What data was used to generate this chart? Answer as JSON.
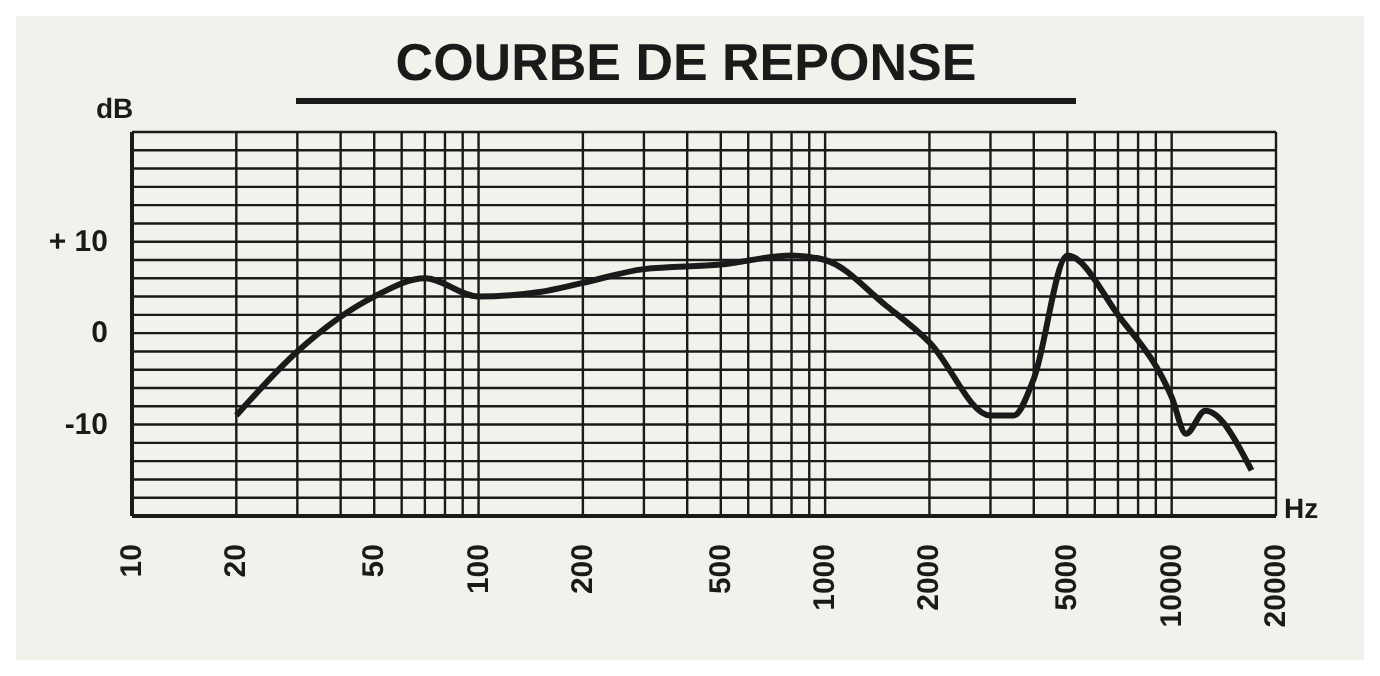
{
  "chart_data": {
    "type": "line",
    "title": "COURBE DE REPONSE",
    "xlabel": "Hz",
    "ylabel": "dB",
    "log": "x",
    "grid": true,
    "marker": "none",
    "line_style": "solid",
    "x": [
      20,
      30,
      50,
      70,
      100,
      150,
      200,
      300,
      500,
      800,
      1000,
      1500,
      2000,
      3000,
      3500,
      4000,
      5000,
      7000,
      10000,
      11000,
      12500,
      17000
    ],
    "series": [
      {
        "color": "#1a1a1a",
        "values": [
          -9,
          -2,
          4,
          6,
          4,
          4.5,
          5.5,
          7,
          7.5,
          8.5,
          8,
          3,
          -1,
          -9,
          -9,
          -5,
          8.5,
          2,
          -7,
          -11,
          -8.5,
          -15
        ]
      }
    ],
    "xlim": [
      10,
      20000
    ],
    "xticks": [
      10,
      20,
      {
        "value": 30,
        "label": null
      },
      {
        "value": 40,
        "label": null
      },
      50,
      {
        "value": 60,
        "label": null
      },
      {
        "value": 70,
        "label": null
      },
      {
        "value": 80,
        "label": null
      },
      {
        "value": 90,
        "label": null
      },
      100,
      200,
      {
        "value": 300,
        "label": null
      },
      {
        "value": 400,
        "label": null
      },
      500,
      {
        "value": 600,
        "label": null
      },
      {
        "value": 700,
        "label": null
      },
      {
        "value": 800,
        "label": null
      },
      {
        "value": 900,
        "label": null
      },
      1000,
      2000,
      {
        "value": 3000,
        "label": null
      },
      {
        "value": 4000,
        "label": null
      },
      5000,
      {
        "value": 6000,
        "label": null
      },
      {
        "value": 7000,
        "label": null
      },
      {
        "value": 8000,
        "label": null
      },
      {
        "value": 9000,
        "label": null
      },
      10000,
      20000
    ],
    "ylim": [
      -20,
      22
    ],
    "yticks": [
      {
        "value": -20,
        "label": null
      },
      {
        "value": -18,
        "label": null
      },
      {
        "value": -16,
        "label": null
      },
      {
        "value": -14,
        "label": null
      },
      {
        "value": -12,
        "label": null
      },
      {
        "value": -10,
        "label": "-10"
      },
      {
        "value": -8,
        "label": null
      },
      {
        "value": -6,
        "label": null
      },
      {
        "value": -4,
        "label": null
      },
      {
        "value": -2,
        "label": null
      },
      0,
      {
        "value": 2,
        "label": null
      },
      {
        "value": 4,
        "label": null
      },
      {
        "value": 6,
        "label": null
      },
      {
        "value": 8,
        "label": null
      },
      {
        "value": 10,
        "label": "+ 10"
      },
      {
        "value": 12,
        "label": null
      },
      {
        "value": 14,
        "label": null
      },
      {
        "value": 16,
        "label": null
      },
      {
        "value": 18,
        "label": null
      },
      {
        "value": 20,
        "label": null
      },
      {
        "value": 22,
        "label": null
      }
    ]
  }
}
